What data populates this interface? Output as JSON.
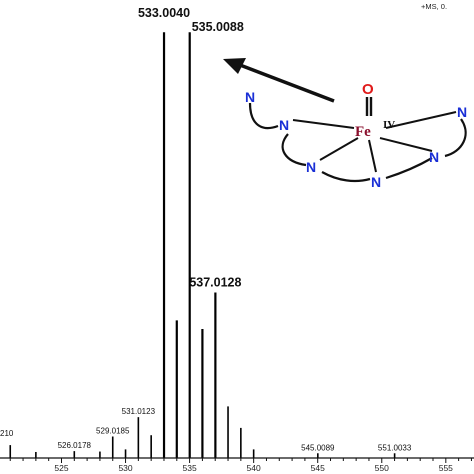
{
  "ms_label": "+MS, 0.",
  "chart_data": {
    "type": "bar",
    "title": "",
    "xlabel": "",
    "ylabel": "",
    "xlim": [
      520.2,
      557.2
    ],
    "ylim": [
      0,
      100
    ],
    "x_ticks": [
      "525",
      "530",
      "535",
      "540",
      "545",
      "550",
      "555"
    ],
    "peaks": [
      {
        "x": 521.0,
        "y": 3.0,
        "label": "210"
      },
      {
        "x": 523.0,
        "y": 1.4,
        "label": ""
      },
      {
        "x": 526.0,
        "y": 1.6,
        "label": "526.0178"
      },
      {
        "x": 528.0,
        "y": 1.5,
        "label": ""
      },
      {
        "x": 529.0,
        "y": 5.0,
        "label": "529.0185"
      },
      {
        "x": 530.0,
        "y": 2.0,
        "label": ""
      },
      {
        "x": 531.0,
        "y": 9.5,
        "label": "531.0123"
      },
      {
        "x": 532.0,
        "y": 5.3,
        "label": ""
      },
      {
        "x": 533.004,
        "y": 99.0,
        "label": "533.0040"
      },
      {
        "x": 534.0,
        "y": 32.0,
        "label": ""
      },
      {
        "x": 535.0088,
        "y": 99.0,
        "label": "535.0088"
      },
      {
        "x": 536.0,
        "y": 30.0,
        "label": ""
      },
      {
        "x": 537.0128,
        "y": 38.5,
        "label": "537.0128"
      },
      {
        "x": 538.0,
        "y": 12.0,
        "label": ""
      },
      {
        "x": 539.0,
        "y": 7.0,
        "label": ""
      },
      {
        "x": 540.0,
        "y": 2.0,
        "label": ""
      },
      {
        "x": 545.0089,
        "y": 1.1,
        "label": "545.0089"
      },
      {
        "x": 551.0033,
        "y": 1.1,
        "label": "551.0033"
      }
    ]
  },
  "structure": {
    "n_labels": [
      "N",
      "N",
      "N",
      "N",
      "N",
      "N"
    ],
    "oxygen": "O",
    "metal": "Fe",
    "oxidation_state": "IV"
  }
}
